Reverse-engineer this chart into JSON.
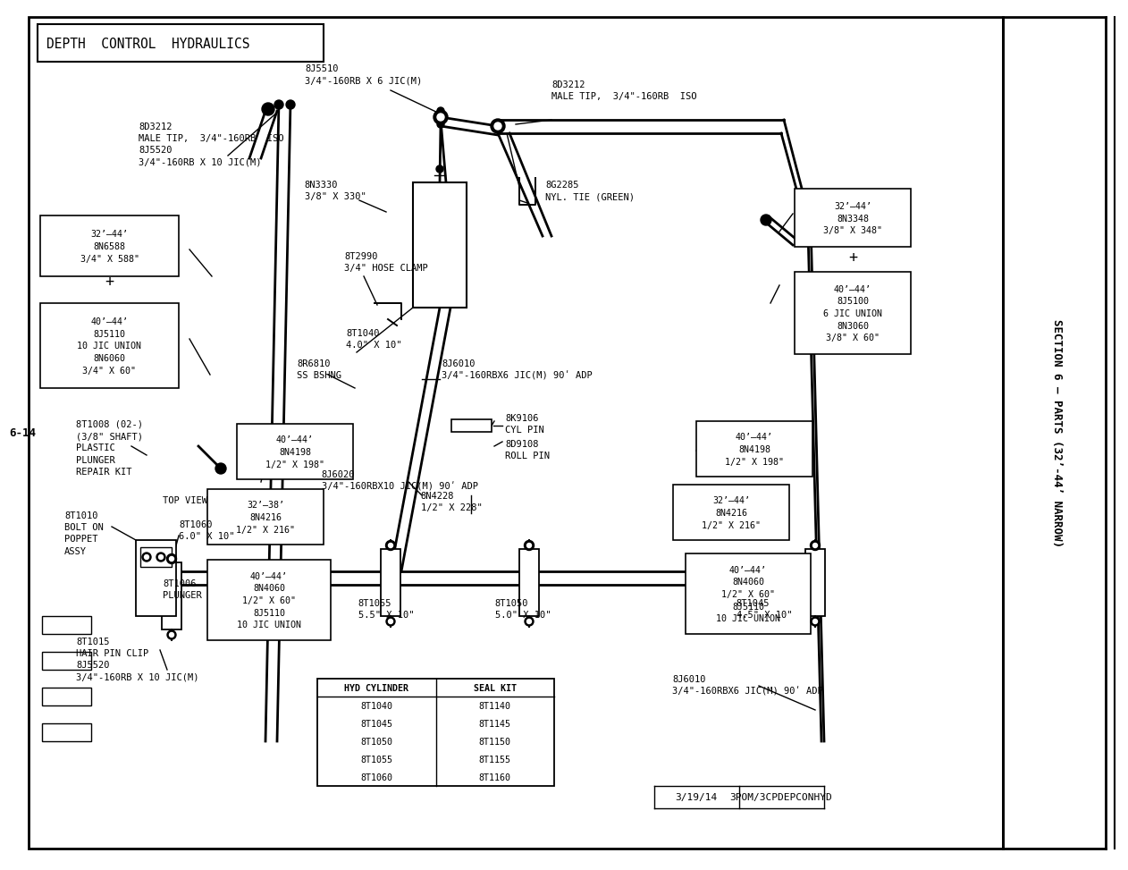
{
  "page_bg": "#ffffff",
  "figsize": [
    12.35,
    9.54
  ],
  "dpi": 100,
  "title": "DEPTH  CONTROL  HYDRAULICS",
  "side_label": "SECTION 6 – PARTS (32’-44’ NARROW)",
  "page_number_left": "6-14",
  "bottom_right_date": "3/19/14",
  "bottom_right_code": "3POM/3CPDEPCONHYD"
}
